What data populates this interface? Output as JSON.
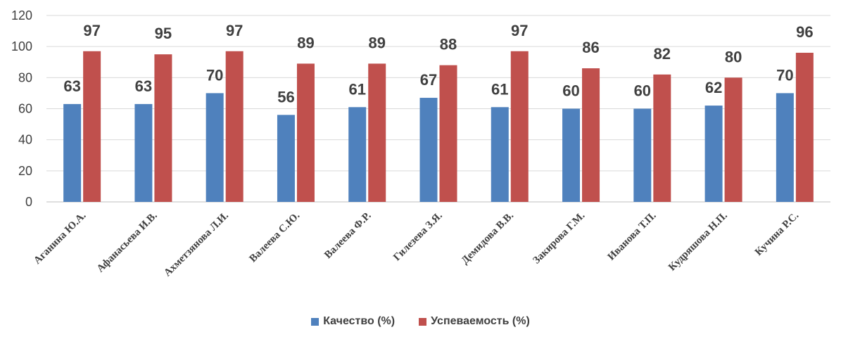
{
  "chart_data": {
    "type": "bar",
    "categories": [
      "Аганина Ю.А.",
      "Афанасьева И.В.",
      "Ахметзянова Л.И.",
      "Валеева С.Ю.",
      "Валеева Ф.Р.",
      "Гилезева З.Я.",
      "Демидова В.В.",
      "Закирова Г.М.",
      "Иванова Т.П.",
      "Кудряшова Н.П.",
      "Кучина Р.С."
    ],
    "series": [
      {
        "name": "Качество (%)",
        "color": "#4f81bd",
        "values": [
          63,
          63,
          70,
          56,
          61,
          67,
          61,
          60,
          60,
          62,
          70
        ]
      },
      {
        "name": "Успеваемость (%)",
        "color": "#c0504d",
        "values": [
          97,
          95,
          97,
          89,
          89,
          88,
          97,
          86,
          82,
          80,
          96
        ]
      }
    ],
    "ylim": [
      0,
      120
    ],
    "yticks": [
      0,
      20,
      40,
      60,
      80,
      100,
      120
    ],
    "grid": true,
    "legend": "bottom"
  }
}
